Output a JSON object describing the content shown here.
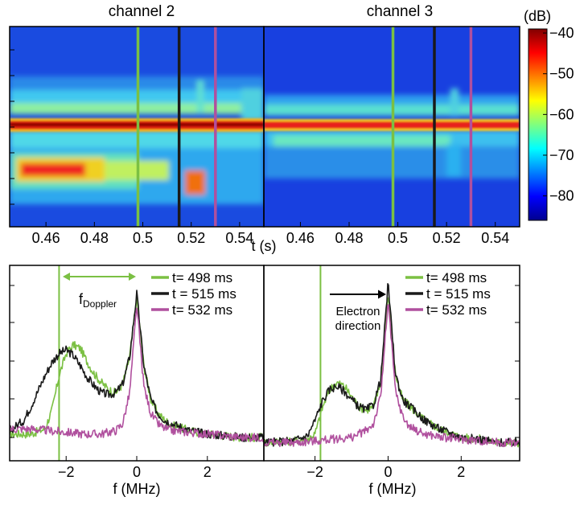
{
  "chart_data": [
    {
      "type": "heatmap",
      "title": "channel 2",
      "xlabel": "t (s)",
      "xlim": [
        0.445,
        0.55
      ],
      "xticks": [
        0.46,
        0.48,
        0.5,
        0.52,
        0.54
      ],
      "xtick_labels": [
        "0.46",
        "0.48",
        "0.5",
        "0.52",
        "0.54"
      ],
      "markers": [
        {
          "t": 0.498,
          "color": "#7bc043"
        },
        {
          "t": 0.515,
          "color": "#1a1a1a"
        },
        {
          "t": 0.53,
          "color": "#b0509e"
        }
      ]
    },
    {
      "type": "heatmap",
      "title": "channel 3",
      "xlabel": "",
      "xlim": [
        0.445,
        0.55
      ],
      "xticks": [
        0.46,
        0.48,
        0.5,
        0.52,
        0.54
      ],
      "xtick_labels": [
        "0.46",
        "0.48",
        "0.5",
        "0.52",
        "0.54"
      ],
      "markers": [
        {
          "t": 0.498,
          "color": "#7bc043"
        },
        {
          "t": 0.515,
          "color": "#1a1a1a"
        },
        {
          "t": 0.53,
          "color": "#b0509e"
        }
      ]
    },
    {
      "type": "line",
      "xlabel": "f (MHz)",
      "xlim": [
        -3.6,
        3.6
      ],
      "xticks": [
        -2,
        0,
        2
      ],
      "xtick_labels": [
        "−2",
        "0",
        "2"
      ],
      "vline": -2.2,
      "annotation": {
        "main": "f",
        "sub": "Doppler"
      },
      "series": [
        {
          "name": "t= 498 ms",
          "color": "#7bc043",
          "points": [
            [
              -3.6,
              0.1
            ],
            [
              -3,
              0.1
            ],
            [
              -2.6,
              0.13
            ],
            [
              -2.4,
              0.24
            ],
            [
              -2.2,
              0.44
            ],
            [
              -2,
              0.57
            ],
            [
              -1.8,
              0.62
            ],
            [
              -1.6,
              0.6
            ],
            [
              -1.4,
              0.52
            ],
            [
              -1.2,
              0.45
            ],
            [
              -1,
              0.4
            ],
            [
              -0.8,
              0.36
            ],
            [
              -0.6,
              0.34
            ],
            [
              -0.4,
              0.39
            ],
            [
              -0.2,
              0.55
            ],
            [
              0,
              0.9
            ],
            [
              0.2,
              0.5
            ],
            [
              0.4,
              0.3
            ],
            [
              0.6,
              0.22
            ],
            [
              0.8,
              0.18
            ],
            [
              1,
              0.15
            ],
            [
              1.5,
              0.12
            ],
            [
              2,
              0.1
            ],
            [
              2.5,
              0.09
            ],
            [
              3,
              0.08
            ],
            [
              3.6,
              0.08
            ]
          ]
        },
        {
          "name": "t = 515 ms",
          "color": "#1a1a1a",
          "points": [
            [
              -3.6,
              0.12
            ],
            [
              -3.2,
              0.18
            ],
            [
              -3,
              0.26
            ],
            [
              -2.8,
              0.35
            ],
            [
              -2.6,
              0.44
            ],
            [
              -2.4,
              0.52
            ],
            [
              -2.2,
              0.57
            ],
            [
              -2,
              0.59
            ],
            [
              -1.8,
              0.56
            ],
            [
              -1.6,
              0.5
            ],
            [
              -1.4,
              0.43
            ],
            [
              -1.2,
              0.38
            ],
            [
              -1,
              0.34
            ],
            [
              -0.8,
              0.33
            ],
            [
              -0.6,
              0.34
            ],
            [
              -0.4,
              0.39
            ],
            [
              -0.2,
              0.55
            ],
            [
              0,
              0.92
            ],
            [
              0.2,
              0.5
            ],
            [
              0.4,
              0.3
            ],
            [
              0.6,
              0.22
            ],
            [
              0.8,
              0.18
            ],
            [
              1,
              0.16
            ],
            [
              1.5,
              0.12
            ],
            [
              2,
              0.1
            ],
            [
              2.5,
              0.09
            ],
            [
              3,
              0.08
            ],
            [
              3.6,
              0.08
            ]
          ]
        },
        {
          "name": "t= 532 ms",
          "color": "#b0509e",
          "points": [
            [
              -3.6,
              0.13
            ],
            [
              -3,
              0.13
            ],
            [
              -2.5,
              0.12
            ],
            [
              -2,
              0.11
            ],
            [
              -1.5,
              0.1
            ],
            [
              -1,
              0.1
            ],
            [
              -0.6,
              0.12
            ],
            [
              -0.4,
              0.16
            ],
            [
              -0.2,
              0.34
            ],
            [
              0,
              0.85
            ],
            [
              0.2,
              0.38
            ],
            [
              0.4,
              0.22
            ],
            [
              0.6,
              0.16
            ],
            [
              0.8,
              0.13
            ],
            [
              1,
              0.12
            ],
            [
              1.5,
              0.11
            ],
            [
              2,
              0.1
            ],
            [
              2.5,
              0.09
            ],
            [
              3,
              0.08
            ],
            [
              3.6,
              0.08
            ]
          ]
        }
      ]
    },
    {
      "type": "line",
      "xlabel": "f (MHz)",
      "xlim": [
        -3.4,
        3.6
      ],
      "xticks": [
        -2,
        0,
        2
      ],
      "xtick_labels": [
        "−2",
        "0",
        "2"
      ],
      "vline": -1.85,
      "annotation": {
        "text": "Electron direction"
      },
      "series": [
        {
          "name": "t= 498 ms",
          "color": "#7bc043",
          "points": [
            [
              -3.4,
              0.05
            ],
            [
              -2.6,
              0.06
            ],
            [
              -2.2,
              0.07
            ],
            [
              -2,
              0.1
            ],
            [
              -1.8,
              0.25
            ],
            [
              -1.6,
              0.36
            ],
            [
              -1.4,
              0.4
            ],
            [
              -1.2,
              0.38
            ],
            [
              -1,
              0.32
            ],
            [
              -0.8,
              0.26
            ],
            [
              -0.6,
              0.24
            ],
            [
              -0.4,
              0.26
            ],
            [
              -0.2,
              0.4
            ],
            [
              0,
              0.92
            ],
            [
              0.2,
              0.45
            ],
            [
              0.4,
              0.3
            ],
            [
              0.6,
              0.26
            ],
            [
              0.8,
              0.22
            ],
            [
              1,
              0.18
            ],
            [
              1.4,
              0.13
            ],
            [
              2,
              0.08
            ],
            [
              2.5,
              0.07
            ],
            [
              3,
              0.05
            ],
            [
              3.6,
              0.05
            ]
          ]
        },
        {
          "name": "t = 515 ms",
          "color": "#1a1a1a",
          "points": [
            [
              -3.4,
              0.05
            ],
            [
              -2.6,
              0.06
            ],
            [
              -2.2,
              0.09
            ],
            [
              -2,
              0.18
            ],
            [
              -1.8,
              0.29
            ],
            [
              -1.6,
              0.36
            ],
            [
              -1.4,
              0.38
            ],
            [
              -1.2,
              0.35
            ],
            [
              -1,
              0.3
            ],
            [
              -0.8,
              0.26
            ],
            [
              -0.6,
              0.24
            ],
            [
              -0.4,
              0.27
            ],
            [
              -0.2,
              0.42
            ],
            [
              0,
              0.98
            ],
            [
              0.2,
              0.45
            ],
            [
              0.4,
              0.3
            ],
            [
              0.6,
              0.26
            ],
            [
              0.8,
              0.22
            ],
            [
              1,
              0.18
            ],
            [
              1.4,
              0.13
            ],
            [
              2,
              0.08
            ],
            [
              2.5,
              0.07
            ],
            [
              3,
              0.05
            ],
            [
              3.6,
              0.05
            ]
          ]
        },
        {
          "name": "t= 532 ms",
          "color": "#b0509e",
          "points": [
            [
              -3.4,
              0.05
            ],
            [
              -2.5,
              0.05
            ],
            [
              -2,
              0.06
            ],
            [
              -1.5,
              0.07
            ],
            [
              -1,
              0.08
            ],
            [
              -0.6,
              0.12
            ],
            [
              -0.4,
              0.16
            ],
            [
              -0.2,
              0.32
            ],
            [
              0,
              0.88
            ],
            [
              0.2,
              0.35
            ],
            [
              0.4,
              0.2
            ],
            [
              0.6,
              0.14
            ],
            [
              0.8,
              0.12
            ],
            [
              1,
              0.1
            ],
            [
              1.5,
              0.08
            ],
            [
              2,
              0.07
            ],
            [
              2.5,
              0.06
            ],
            [
              3,
              0.05
            ],
            [
              3.6,
              0.05
            ]
          ]
        }
      ]
    }
  ],
  "colorbar": {
    "unit": "(dB)",
    "ticks": [
      -40,
      -50,
      -60,
      -70,
      -80
    ],
    "tick_labels": [
      "−40",
      "−50",
      "−60",
      "−70",
      "−80"
    ],
    "range": [
      -86,
      -39
    ]
  }
}
